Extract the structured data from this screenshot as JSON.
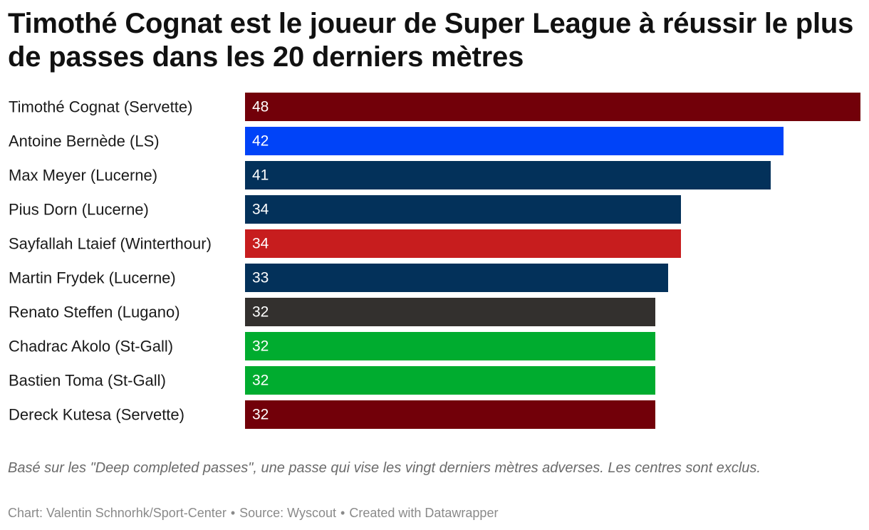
{
  "title": "Timothé Cognat est le joueur de Super League à réussir le plus de passes dans les 20 derniers mètres",
  "chart_data": {
    "type": "bar",
    "orientation": "horizontal",
    "title": "Timothé Cognat est le joueur de Super League à réussir le plus de passes dans les 20 derniers mètres",
    "xlabel": "",
    "ylabel": "",
    "xlim": [
      0,
      48
    ],
    "grid": false,
    "categories": [
      "Timothé Cognat (Servette)",
      "Antoine Bernède (LS)",
      "Max Meyer (Lucerne)",
      "Pius Dorn (Lucerne)",
      "Sayfallah Ltaief (Winterthour)",
      "Martin Frydek (Lucerne)",
      "Renato Steffen (Lugano)",
      "Chadrac Akolo (St-Gall)",
      "Bastien Toma (St-Gall)",
      "Dereck Kutesa (Servette)"
    ],
    "values": [
      48,
      42,
      41,
      34,
      34,
      33,
      32,
      32,
      32,
      32
    ],
    "colors": [
      "#720009",
      "#0043f8",
      "#03315a",
      "#03315a",
      "#c71d1e",
      "#03315a",
      "#33302e",
      "#00ac2f",
      "#00ac2f",
      "#720009"
    ]
  },
  "note": "Basé sur les \"Deep completed passes\", une passe qui vise les vingt derniers mètres adverses. Les centres sont exclus.",
  "footer": {
    "chart_credit": "Chart: Valentin Schnorhk/Sport-Center",
    "source": "Source: Wyscout",
    "created_with": "Created with Datawrapper",
    "separator": "•"
  }
}
